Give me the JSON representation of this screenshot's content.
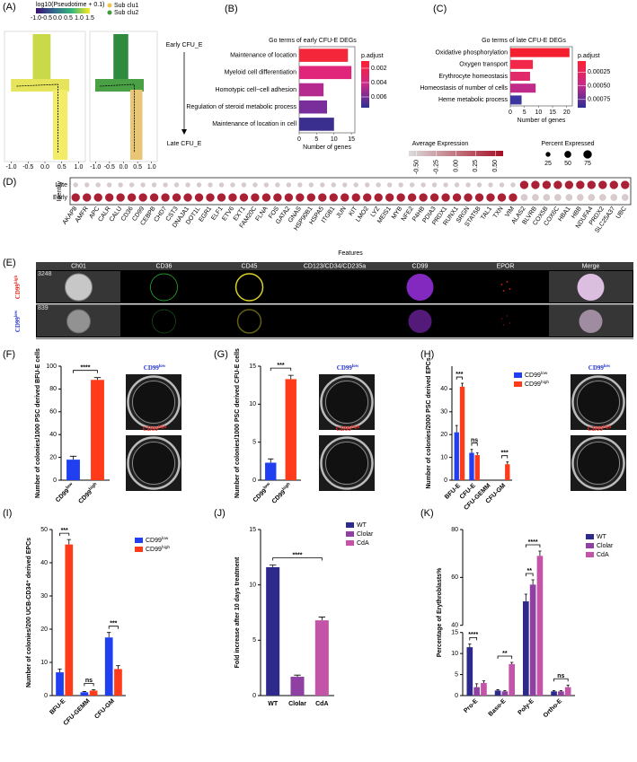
{
  "chart_data": [
    {
      "type": "scatter",
      "panel_label": "(A)",
      "colorbar_title": "log10(Pseudotime + 0.1)",
      "colorbar_lim": [
        -1,
        1.5
      ],
      "colorbar_ticks": [
        {
          "value": -1,
          "label": "-1.0"
        },
        {
          "value": -0.5,
          "label": "-0.5"
        },
        {
          "value": 0,
          "label": "0.0"
        },
        {
          "value": 0.5,
          "label": "0.5"
        },
        {
          "value": 1,
          "label": "1.0"
        },
        {
          "value": 1.5,
          "label": "1.5"
        }
      ],
      "colorbar_colors": [
        "#3b0f70",
        "#31688e",
        "#35b779",
        "#fde725"
      ],
      "series": [
        {
          "name": "Sub clu1",
          "color": "#f3c44a"
        },
        {
          "name": "Sub clu2",
          "color": "#3f9c3c"
        }
      ],
      "xlim": [
        -1.2,
        1.2
      ],
      "xticks": [
        {
          "value": -1,
          "label": "-1.0"
        },
        {
          "value": -0.5,
          "label": "-0.5"
        },
        {
          "value": 0,
          "label": "0.0"
        },
        {
          "value": 0.5,
          "label": "0.5"
        },
        {
          "value": 1,
          "label": "1.0"
        }
      ],
      "annotations": [
        "Early CFU_E",
        "Late CFU_E"
      ]
    },
    {
      "type": "barh",
      "panel_label": "(B)",
      "title": "Go terms of early CFU-E DEGs",
      "categories": [
        "Maintenance of location",
        "Myeloid cell differentiation",
        "Homotypic cell−cell adhesion",
        "Regulation of steroid metabolic process",
        "Maintenance of location in cell"
      ],
      "values": [
        14,
        15,
        7,
        8,
        10
      ],
      "colors": [
        "#f4263a",
        "#e0257a",
        "#b42a8f",
        "#7a2e9c",
        "#3a2f8f"
      ],
      "xlabel": "Number of genes",
      "xlim": [
        0,
        16
      ],
      "xticks": [
        0,
        5,
        10,
        15
      ],
      "legend_title": "p.adjust",
      "legend_lim": [
        0.001,
        0.0075
      ],
      "legend_ticks": [
        0.002,
        0.004,
        0.006
      ],
      "legend_colors": [
        "#ff1f2f",
        "#c92a8a",
        "#2c2f96"
      ]
    },
    {
      "type": "barh",
      "panel_label": "(C)",
      "title": "Go terms of late CFU-E DEGs",
      "categories": [
        "Oxidative phosphorylation",
        "Oxygen transport",
        "Erythrocyte homeostasis",
        "Homeostasis of number of cells",
        "Heme metabolic process"
      ],
      "values": [
        21,
        8,
        7,
        9,
        4
      ],
      "colors": [
        "#f42030",
        "#f2284a",
        "#e02a6a",
        "#c02a88",
        "#3b35a0"
      ],
      "xlabel": "Number of genes",
      "xlim": [
        0,
        22
      ],
      "xticks": [
        0,
        5,
        10,
        15,
        20
      ],
      "legend_title": "p.adjust",
      "legend_lim": [
        5e-05,
        0.0009
      ],
      "legend_ticks": [
        {
          "value": 0.00025,
          "label": "0.00025"
        },
        {
          "value": 0.0005,
          "label": "0.00050"
        },
        {
          "value": 0.00075,
          "label": "0.00075"
        }
      ],
      "legend_colors": [
        "#ff1f2f",
        "#c92a8a",
        "#2c2f96"
      ]
    },
    {
      "type": "dotplot",
      "panel_label": "(D)",
      "xlabel": "Features",
      "ylabel": "Identity",
      "features": [
        "AKAP8",
        "AMFR",
        "APC",
        "CALR",
        "CALU",
        "CD36",
        "CD99",
        "CEBPB",
        "CHD7",
        "CST3",
        "DNAJA1",
        "DOT1L",
        "EGR1",
        "ELF1",
        "ETV6",
        "EXT1",
        "FAM20C",
        "FLNA",
        "FOS",
        "GATA2",
        "GNAS",
        "HSP90B1",
        "HSPA5",
        "ITGB1",
        "JUN",
        "KIT",
        "LMO2",
        "LYZ",
        "MEIS1",
        "MYB",
        "NFE2",
        "P4HB",
        "PDIA3",
        "PRDX1",
        "RUNX1",
        "SRGN",
        "STAT5B",
        "TAL1",
        "TXN",
        "VIM",
        "ALAS2",
        "BLVRB",
        "COX5B",
        "COX6C",
        "HBA1",
        "HBB",
        "NDUFA4",
        "PRDX2",
        "SLC25A37",
        "UBC"
      ],
      "series": [
        {
          "name": "Late",
          "expression": [
            -0.5,
            -0.5,
            -0.5,
            -0.5,
            -0.5,
            -0.5,
            -0.5,
            -0.5,
            -0.5,
            -0.5,
            -0.5,
            -0.5,
            -0.5,
            -0.5,
            -0.5,
            -0.5,
            -0.5,
            -0.5,
            -0.5,
            -0.5,
            -0.5,
            -0.5,
            -0.5,
            -0.5,
            -0.5,
            -0.5,
            -0.5,
            -0.5,
            -0.5,
            -0.5,
            -0.5,
            -0.5,
            -0.5,
            -0.5,
            -0.5,
            -0.5,
            -0.5,
            -0.5,
            -0.5,
            -0.5,
            0.5,
            0.5,
            0.5,
            0.5,
            0.5,
            0.5,
            0.5,
            0.5,
            0.5,
            0.5
          ],
          "percent": [
            25,
            25,
            25,
            25,
            25,
            25,
            25,
            25,
            25,
            25,
            25,
            25,
            25,
            25,
            25,
            25,
            25,
            25,
            25,
            25,
            25,
            25,
            25,
            25,
            25,
            25,
            25,
            25,
            25,
            25,
            25,
            25,
            25,
            25,
            25,
            25,
            25,
            25,
            25,
            25,
            75,
            75,
            75,
            75,
            75,
            75,
            75,
            75,
            75,
            75
          ]
        },
        {
          "name": "Early",
          "expression": [
            0.5,
            0.5,
            0.5,
            0.5,
            0.5,
            0.5,
            0.5,
            0.5,
            0.5,
            0.5,
            0.5,
            0.5,
            0.5,
            0.5,
            0.5,
            0.5,
            0.5,
            0.5,
            0.5,
            0.5,
            0.5,
            0.5,
            0.5,
            0.5,
            0.5,
            0.5,
            0.5,
            0.5,
            0.5,
            0.5,
            0.5,
            0.5,
            0.5,
            0.5,
            0.5,
            0.5,
            0.5,
            0.5,
            0.5,
            0.5,
            -0.5,
            -0.5,
            -0.5,
            -0.5,
            -0.5,
            -0.5,
            -0.5,
            -0.5,
            -0.5,
            -0.5
          ],
          "percent": [
            75,
            75,
            75,
            75,
            75,
            75,
            75,
            75,
            75,
            75,
            75,
            75,
            75,
            75,
            75,
            75,
            75,
            75,
            75,
            75,
            75,
            75,
            75,
            75,
            75,
            75,
            75,
            75,
            75,
            75,
            75,
            75,
            75,
            75,
            75,
            75,
            75,
            75,
            75,
            75,
            50,
            50,
            50,
            50,
            50,
            50,
            50,
            50,
            50,
            50
          ]
        }
      ],
      "color_legend_title": "Average Expression",
      "color_lim": [
        -0.6,
        0.6
      ],
      "colors": [
        "#dcdcdc",
        "#a50f25"
      ],
      "color_ticks": [
        {
          "value": -0.5,
          "label": "-0.50"
        },
        {
          "value": -0.25,
          "label": "-0.25"
        },
        {
          "value": 0,
          "label": "0.00"
        },
        {
          "value": 0.25,
          "label": "0.25"
        },
        {
          "value": 0.5,
          "label": "0.50"
        }
      ],
      "size_legend_title": "Percent Expressed",
      "size_ticks": [
        25,
        50,
        75
      ]
    },
    {
      "type": "image",
      "panel_label": "(E)",
      "columns": [
        "Ch01",
        "CD36",
        "CD45",
        "CD123/CD34/CD235a",
        "CD99",
        "EPOR",
        "Merge"
      ],
      "rows": [
        {
          "label": {
            "text": "CD99",
            "sup": "high"
          },
          "id": "3248",
          "color": "#e8221a"
        },
        {
          "label": {
            "text": "CD99",
            "sup": "low"
          },
          "id": "839",
          "color": "#2233cc"
        }
      ]
    },
    {
      "type": "bar",
      "panel_label": "(F)",
      "categories": [
        {
          "text": "CD99",
          "sup": "low"
        },
        {
          "text": "CD99",
          "sup": "high"
        }
      ],
      "values": [
        18,
        88
      ],
      "errors": [
        3,
        2
      ],
      "colors": [
        "#1f3ff0",
        "#ff3b1a"
      ],
      "xtick_rotation": 45,
      "ylabel": "Number of colonies/1000 PSC derived BFU-E cells",
      "ylim": [
        0,
        100
      ],
      "yticks": [
        0,
        20,
        40,
        60,
        80,
        100
      ],
      "significance": [
        {
          "label": "****",
          "between": [
            0,
            1
          ]
        }
      ],
      "dish_labels": [
        {
          "text": "CD99",
          "sup": "low"
        },
        {
          "text": "CD99",
          "sup": "high"
        }
      ],
      "dish_label_colors": [
        "#2233cc",
        "#e8221a"
      ]
    },
    {
      "type": "bar",
      "panel_label": "(G)",
      "categories": [
        {
          "text": "CD99",
          "sup": "low"
        },
        {
          "text": "CD99",
          "sup": "high"
        }
      ],
      "values": [
        2.3,
        13.3
      ],
      "errors": [
        0.5,
        0.5
      ],
      "colors": [
        "#1f3ff0",
        "#ff3b1a"
      ],
      "xtick_rotation": 45,
      "ylabel": "Number of colonies/1000 PSC derived CFU-E cells",
      "ylim": [
        0,
        15
      ],
      "yticks": [
        0,
        5,
        10,
        15
      ],
      "significance": [
        {
          "label": "***",
          "between": [
            0,
            1
          ]
        }
      ],
      "dish_labels": [
        {
          "text": "CD99",
          "sup": "low"
        },
        {
          "text": "CD99",
          "sup": "high"
        }
      ],
      "dish_label_colors": [
        "#2233cc",
        "#e8221a"
      ]
    },
    {
      "type": "grouped_bar",
      "panel_label": "(H)",
      "categories": [
        "BFU-E",
        "CFU-E",
        "CFU-GEMM",
        "CFU-GM"
      ],
      "xtick_rotation": 45,
      "series": [
        {
          "name": {
            "text": "CD99",
            "sup": "low"
          },
          "color": "#1f3ff0",
          "values": [
            21,
            12,
            0,
            0
          ],
          "errors": [
            3,
            1.5,
            0,
            0
          ]
        },
        {
          "name": {
            "text": "CD99",
            "sup": "high"
          },
          "color": "#ff3b1a",
          "values": [
            41,
            11,
            0,
            7
          ],
          "errors": [
            1.5,
            1,
            0,
            1
          ]
        }
      ],
      "ylabel": "Number of colonies/2000 PSC derived EPCs",
      "ylim": [
        0,
        50
      ],
      "yticks": [
        0,
        10,
        20,
        30,
        40
      ],
      "significance": [
        {
          "label": "***",
          "category": 0,
          "between": [
            0,
            1
          ]
        },
        {
          "label": "ns",
          "category": 1,
          "between": [
            0,
            1
          ]
        },
        {
          "label": "***",
          "category": 3,
          "between": [
            0,
            1
          ]
        }
      ],
      "dish_labels": [
        {
          "text": "CD99",
          "sup": "low"
        },
        {
          "text": "CD99",
          "sup": "high"
        }
      ],
      "dish_label_colors": [
        "#2233cc",
        "#e8221a"
      ]
    },
    {
      "type": "grouped_bar",
      "panel_label": "(I)",
      "categories": [
        "BFU-E",
        "CFU-GEMM",
        "CFU-GM"
      ],
      "xtick_rotation": 45,
      "series": [
        {
          "name": {
            "text": "CD99",
            "sup": "low"
          },
          "color": "#1f3ff0",
          "values": [
            7,
            1,
            17.5
          ],
          "errors": [
            1,
            0.2,
            1.5
          ]
        },
        {
          "name": {
            "text": "CD99",
            "sup": "high"
          },
          "color": "#ff3b1a",
          "values": [
            45.5,
            1.5,
            8
          ],
          "errors": [
            1.5,
            0.3,
            1
          ]
        }
      ],
      "ylabel": "Number of colonies/200 UCB-CD34⁺ derived EPCs",
      "ylim": [
        0,
        50
      ],
      "yticks": [
        0,
        10,
        20,
        30,
        40,
        50
      ],
      "significance": [
        {
          "label": "***",
          "category": 0,
          "between": [
            0,
            1
          ]
        },
        {
          "label": "ns",
          "category": 1,
          "between": [
            0,
            1
          ]
        },
        {
          "label": "***",
          "category": 2,
          "between": [
            0,
            1
          ]
        }
      ]
    },
    {
      "type": "bar",
      "panel_label": "(J)",
      "categories": [
        "WT",
        "Clolar",
        "CdA"
      ],
      "values": [
        11.6,
        1.7,
        6.8
      ],
      "errors": [
        0.2,
        0.15,
        0.3
      ],
      "colors": [
        "#2d2a8c",
        "#8e40a3",
        "#c454a8"
      ],
      "legend": true,
      "ylabel": "Fold increase after 10 days treatment",
      "ylim": [
        0,
        15
      ],
      "yticks": [
        0,
        5,
        10,
        15
      ],
      "significance": [
        {
          "label": "****",
          "between": [
            0,
            2
          ]
        }
      ]
    },
    {
      "type": "grouped_bar",
      "panel_label": "(K)",
      "categories": [
        "Pro-E",
        "Baso-E",
        "Poly-E",
        "Ortho-E"
      ],
      "xtick_rotation": 45,
      "series": [
        {
          "name": "WT",
          "color": "#2d2a8c",
          "values": [
            11.5,
            1.2,
            50,
            1
          ],
          "errors": [
            0.8,
            0.2,
            3,
            0.2
          ]
        },
        {
          "name": "Clolar",
          "color": "#8e40a3",
          "values": [
            2,
            1,
            57,
            1
          ],
          "errors": [
            0.8,
            0.2,
            2,
            0.2
          ]
        },
        {
          "name": "CdA",
          "color": "#c454a8",
          "values": [
            3,
            7.5,
            69,
            2
          ],
          "errors": [
            0.5,
            0.4,
            2,
            0.5
          ]
        }
      ],
      "ylabel": "Percentage of Erythroblasts%",
      "ylim": [
        0,
        80
      ],
      "ybreak": [
        15,
        40
      ],
      "yticks": [
        0,
        5,
        10,
        15,
        40,
        60,
        80
      ],
      "significance": [
        {
          "label": "****",
          "category": 0,
          "between": [
            0,
            1
          ]
        },
        {
          "label": "**",
          "category": 1,
          "between": [
            0,
            2
          ]
        },
        {
          "label": "****",
          "category": 2,
          "between": [
            0,
            2
          ]
        },
        {
          "label": "**",
          "category": 2,
          "between": [
            0,
            1
          ]
        },
        {
          "label": "ns",
          "category": 3,
          "between": [
            0,
            2
          ]
        }
      ]
    }
  ]
}
